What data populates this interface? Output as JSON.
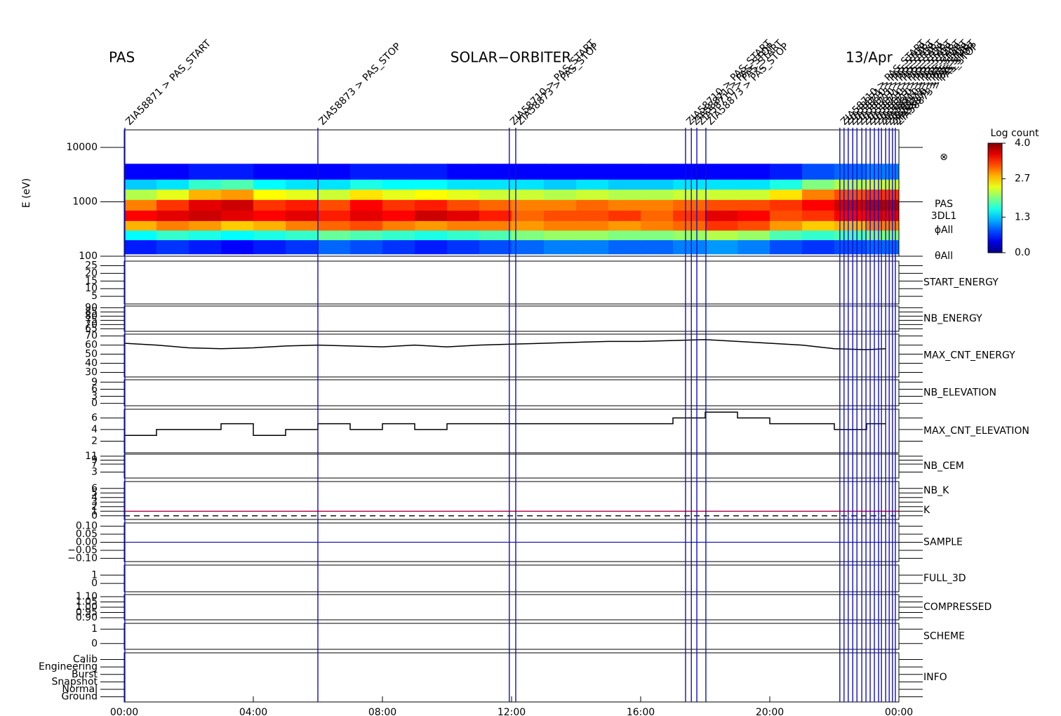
{
  "header": {
    "left": "PAS",
    "center": "SOLAR−ORBITER",
    "right": "13/Apr"
  },
  "events": {
    "color": "#1010c0",
    "items": [
      {
        "x": 0.02,
        "label": "ZIA58871 > PAS_START"
      },
      {
        "x": 6.0,
        "label": "ZIA58873 > PAS_STOP"
      },
      {
        "x": 11.93,
        "label": "ZIA58710 > PAS_START"
      },
      {
        "x": 12.13,
        "label": "ZIA58873 > PAS_STOP"
      },
      {
        "x": 17.39,
        "label": "ZIA58710 > PAS_START"
      },
      {
        "x": 17.57,
        "label": "ZIA58871 > PAS_STOP"
      },
      {
        "x": 17.74,
        "label": "ZIA58710 > PAS_START"
      },
      {
        "x": 18.02,
        "label": "ZIA58873 > PAS_STOP"
      },
      {
        "x": 22.17,
        "label": "ZIA58710 > PAS_START"
      },
      {
        "x": 22.3,
        "label": "ZIA58871 > PAS_STOP"
      },
      {
        "x": 22.43,
        "label": "ZIA58710 > PAS_START"
      },
      {
        "x": 22.57,
        "label": "ZIA58873 > PAS_STOP"
      },
      {
        "x": 22.7,
        "label": "ZIA58710 > PAS_START"
      },
      {
        "x": 22.85,
        "label": "ZIA58871 > PAS_STOP"
      },
      {
        "x": 22.98,
        "label": "ZIA58710 > PAS_START"
      },
      {
        "x": 23.11,
        "label": "ZIA58873 > PAS_STOP"
      },
      {
        "x": 23.24,
        "label": "ZIA58710 > PAS_START"
      },
      {
        "x": 23.37,
        "label": "ZIA58871 > PAS_STOP"
      },
      {
        "x": 23.46,
        "label": "ZIA58710 > PAS_START"
      },
      {
        "x": 23.59,
        "label": "ZIA58873 > PAS_STOP"
      },
      {
        "x": 23.7,
        "label": "ZIA58710 > PAS_START"
      },
      {
        "x": 23.8,
        "label": "ZIA58871 > PAS_STOP"
      },
      {
        "x": 23.89,
        "label": "ZIA58873 > PAS_STOP"
      }
    ]
  },
  "chart_data": [
    {
      "type": "heatmap",
      "ylabel": "E (eV)",
      "log": true,
      "xlim": [
        0,
        24
      ],
      "ylim": [
        100,
        21000
      ],
      "yticks": [
        100,
        1000,
        10000
      ],
      "x": [
        0,
        1,
        2,
        3,
        4,
        5,
        6,
        7,
        8,
        9,
        10,
        11,
        12,
        13,
        14,
        15,
        16,
        17,
        18,
        19,
        20,
        21,
        22,
        23,
        24
      ],
      "y": [
        110,
        200,
        300,
        450,
        700,
        1100,
        1700,
        2600,
        5000
      ],
      "z": [
        [
          0.6,
          0.7,
          0.6,
          0.5,
          0.6,
          0.7,
          0.9,
          0.8,
          0.7,
          0.6,
          0.7,
          0.8,
          0.9,
          1.0,
          1.0,
          0.9,
          0.9,
          1.0,
          1.1,
          1.0,
          0.8,
          0.7,
          0.8,
          0.9
        ],
        [
          1.5,
          1.7,
          1.6,
          1.5,
          1.6,
          1.7,
          1.9,
          1.8,
          1.7,
          1.6,
          1.7,
          1.8,
          2.0,
          2.1,
          2.1,
          2.0,
          2.0,
          2.1,
          2.2,
          2.1,
          1.8,
          1.7,
          1.8,
          2.0
        ],
        [
          2.8,
          3.0,
          2.9,
          2.7,
          2.8,
          3.0,
          3.1,
          3.2,
          3.0,
          2.9,
          3.0,
          3.0,
          2.9,
          3.0,
          3.0,
          2.9,
          3.0,
          3.1,
          3.3,
          3.2,
          2.9,
          2.7,
          2.8,
          3.0
        ],
        [
          3.5,
          3.6,
          3.7,
          3.6,
          3.5,
          3.6,
          3.4,
          3.6,
          3.5,
          3.7,
          3.6,
          3.4,
          3.1,
          3.2,
          3.2,
          3.3,
          3.1,
          3.3,
          3.6,
          3.5,
          3.2,
          3.3,
          3.5,
          3.6
        ],
        [
          3.0,
          3.3,
          3.6,
          3.7,
          3.3,
          3.4,
          3.2,
          3.5,
          3.3,
          3.4,
          3.2,
          3.1,
          3.0,
          3.0,
          3.1,
          3.0,
          3.0,
          3.1,
          3.2,
          3.2,
          3.3,
          3.5,
          3.7,
          3.8
        ],
        [
          2.2,
          2.4,
          2.8,
          2.9,
          2.5,
          2.4,
          2.3,
          2.6,
          2.4,
          2.5,
          2.4,
          2.3,
          2.3,
          2.2,
          2.3,
          2.2,
          2.2,
          2.3,
          2.3,
          2.3,
          2.6,
          3.0,
          3.2,
          3.3
        ],
        [
          1.3,
          1.4,
          1.7,
          1.8,
          1.5,
          1.4,
          1.4,
          1.6,
          1.5,
          1.5,
          1.4,
          1.4,
          1.4,
          1.3,
          1.4,
          1.3,
          1.3,
          1.4,
          1.4,
          1.4,
          1.6,
          2.0,
          2.2,
          2.3
        ],
        [
          0.5,
          0.5,
          0.6,
          0.6,
          0.5,
          0.5,
          0.5,
          0.6,
          0.6,
          0.6,
          0.5,
          0.5,
          0.5,
          0.5,
          0.5,
          0.5,
          0.5,
          0.5,
          0.5,
          0.5,
          0.6,
          0.8,
          0.9,
          1.0
        ]
      ],
      "annotations": [
        "⊗",
        "PAS",
        "3DL1",
        "ϕAll",
        "θAll"
      ],
      "colorbar": {
        "label": "Log count",
        "lim": [
          0,
          4
        ],
        "ticks": [
          {
            "value": 0,
            "label": "0.0"
          },
          {
            "value": 1.3,
            "label": "1.3"
          },
          {
            "value": 2.7,
            "label": "2.7"
          },
          {
            "value": 4,
            "label": "4.0"
          }
        ]
      }
    },
    {
      "type": "line",
      "labels": [
        {
          "text": "START_ENERGY",
          "color": "#000000"
        }
      ],
      "xlim": [
        0,
        24
      ],
      "ylim": [
        0,
        28
      ],
      "yticks": [
        5,
        10,
        15,
        20,
        25
      ]
    },
    {
      "type": "line",
      "labels": [
        {
          "text": "NB_ENERGY",
          "color": "#1a1aaa"
        }
      ],
      "xlim": [
        0,
        24
      ],
      "ylim": [
        62,
        92
      ],
      "yticks": [
        65,
        70,
        75,
        80,
        85,
        90
      ]
    },
    {
      "type": "line",
      "labels": [
        {
          "text": "MAX_CNT_ENERGY",
          "color": "#000000"
        }
      ],
      "xlim": [
        0,
        24
      ],
      "ylim": [
        25,
        72
      ],
      "yticks": [
        30,
        40,
        50,
        60,
        70
      ],
      "x": [
        0,
        1,
        2,
        3,
        4,
        5,
        6,
        7,
        8,
        9,
        10,
        11,
        12,
        13,
        14,
        15,
        16,
        17,
        18,
        19,
        20,
        21,
        22,
        23,
        23.6
      ],
      "values": [
        62,
        60,
        57,
        56,
        57,
        59,
        60,
        59,
        58,
        60,
        58,
        60,
        61,
        62,
        63,
        64,
        64,
        65,
        66,
        64,
        62,
        60,
        56,
        55,
        56
      ],
      "color": "#000000"
    },
    {
      "type": "line",
      "labels": [
        {
          "text": "NB_ELEVATION",
          "color": "#1a1aaa"
        }
      ],
      "xlim": [
        0,
        24
      ],
      "ylim": [
        -1,
        10
      ],
      "yticks": [
        0,
        3,
        6,
        9
      ]
    },
    {
      "type": "step",
      "labels": [
        {
          "text": "MAX_CNT_ELEVATION",
          "color": "#000000"
        }
      ],
      "xlim": [
        0,
        24
      ],
      "ylim": [
        0,
        7.5
      ],
      "yticks": [
        2,
        4,
        6
      ],
      "x": [
        0,
        1,
        2,
        3,
        4,
        5,
        6,
        7,
        8,
        9,
        10,
        11,
        12,
        13,
        14,
        15,
        16,
        17,
        18,
        19,
        20,
        21,
        22,
        23,
        23.6
      ],
      "values": [
        3,
        4,
        4,
        5,
        3,
        4,
        5,
        4,
        5,
        4,
        5,
        5,
        5,
        5,
        5,
        5,
        5,
        6,
        7,
        6,
        5,
        5,
        4,
        5,
        5
      ],
      "color": "#000000"
    },
    {
      "type": "line",
      "labels": [
        {
          "text": "NB_CEM",
          "color": "#1a1aaa"
        }
      ],
      "xlim": [
        0,
        24
      ],
      "ylim": [
        0,
        12
      ],
      "yticks": [
        3,
        7,
        9,
        11
      ]
    },
    {
      "type": "line",
      "labels": [
        {
          "text": "NB_K",
          "color": "#d00000"
        },
        {
          "text": "K",
          "color": "#1a1aaa"
        }
      ],
      "xlim": [
        0,
        24
      ],
      "ylim": [
        -0.8,
        7.5
      ],
      "yticks": [
        0,
        1,
        2,
        3,
        4,
        5,
        6
      ],
      "levels": [
        {
          "value": 1,
          "color": "#b00040",
          "dashed": false
        },
        {
          "value": 0,
          "color": "#000000",
          "dashed": true
        }
      ]
    },
    {
      "type": "line",
      "labels": [
        {
          "text": "SAMPLE",
          "color": "#1a1aaa"
        }
      ],
      "xlim": [
        0,
        24
      ],
      "ylim": [
        -0.12,
        0.12
      ],
      "yticks": [
        {
          "value": -0.1,
          "label": "−0.10"
        },
        {
          "value": -0.05,
          "label": "−0.05"
        },
        {
          "value": 0,
          "label": "0.00"
        },
        {
          "value": 0.05,
          "label": "0.05"
        },
        {
          "value": 0.1,
          "label": "0.10"
        }
      ],
      "levels": [
        {
          "value": 0,
          "color": "#1a1aaa",
          "dashed": false
        }
      ]
    },
    {
      "type": "line",
      "labels": [
        {
          "text": "FULL_3D",
          "color": "#1a1aaa"
        }
      ],
      "xlim": [
        0,
        24
      ],
      "ylim": [
        -1,
        2.2
      ],
      "yticks": [
        0,
        1
      ]
    },
    {
      "type": "line",
      "labels": [
        {
          "text": "COMPRESSED",
          "color": "#000000"
        }
      ],
      "xlim": [
        0,
        24
      ],
      "ylim": [
        0.88,
        1.12
      ],
      "yticks": [
        {
          "value": 0.9,
          "label": "0.90"
        },
        {
          "value": 0.95,
          "label": "0.95"
        },
        {
          "value": 1,
          "label": "1.00"
        },
        {
          "value": 1.05,
          "label": "1.05"
        },
        {
          "value": 1.1,
          "label": "1.10"
        }
      ]
    },
    {
      "type": "line",
      "labels": [
        {
          "text": "SCHEME",
          "color": "#000000"
        }
      ],
      "xlim": [
        0,
        24
      ],
      "ylim": [
        -0.4,
        1.4
      ],
      "yticks": [
        0,
        1
      ]
    },
    {
      "type": "line",
      "labels": [
        {
          "text": "INFO",
          "color": "#000000"
        }
      ],
      "xlim": [
        0,
        24
      ],
      "ylim": [
        -0.7,
        5.9
      ],
      "yticks": [
        {
          "value": 0,
          "label": "Ground"
        },
        {
          "value": 1,
          "label": "Normal"
        },
        {
          "value": 2,
          "label": "Snapshot"
        },
        {
          "value": 3,
          "label": "Burst"
        },
        {
          "value": 4,
          "label": "Engineering"
        },
        {
          "value": 5,
          "label": "Calib"
        }
      ],
      "xticks": [
        {
          "value": 0,
          "label": "00:00"
        },
        {
          "value": 4,
          "label": "04:00"
        },
        {
          "value": 8,
          "label": "08:00"
        },
        {
          "value": 12,
          "label": "12:00"
        },
        {
          "value": 16,
          "label": "16:00"
        },
        {
          "value": 20,
          "label": "20:00"
        },
        {
          "value": 24,
          "label": "00:00"
        }
      ]
    }
  ]
}
